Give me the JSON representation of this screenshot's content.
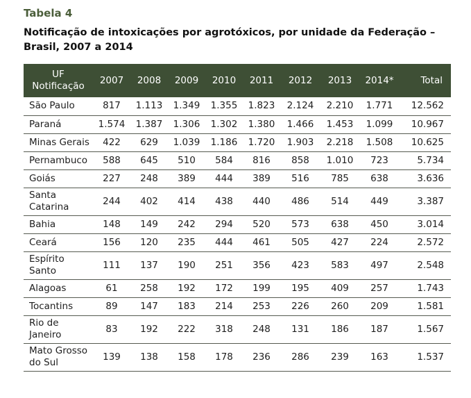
{
  "table_label": "Tabela 4",
  "title": "Notificação de intoxicações por agrotóxicos, por unidade da Federação – Brasil, 2007 a 2014",
  "header": {
    "uf_line1": "UF",
    "uf_line2": "Notificação",
    "years": [
      "2007",
      "2008",
      "2009",
      "2010",
      "2011",
      "2012",
      "2013",
      "2014*"
    ],
    "total": "Total"
  },
  "rows": [
    {
      "name": [
        "São Paulo"
      ],
      "values": [
        "817",
        "1.113",
        "1.349",
        "1.355",
        "1.823",
        "2.124",
        "2.210",
        "1.771"
      ],
      "total": "12.562"
    },
    {
      "name": [
        "Paraná"
      ],
      "values": [
        "1.574",
        "1.387",
        "1.306",
        "1.302",
        "1.380",
        "1.466",
        "1.453",
        "1.099"
      ],
      "total": "10.967"
    },
    {
      "name": [
        "Minas Gerais"
      ],
      "values": [
        "422",
        "629",
        "1.039",
        "1.186",
        "1.720",
        "1.903",
        "2.218",
        "1.508"
      ],
      "total": "10.625"
    },
    {
      "name": [
        "Pernambuco"
      ],
      "values": [
        "588",
        "645",
        "510",
        "584",
        "816",
        "858",
        "1.010",
        "723"
      ],
      "total": "5.734"
    },
    {
      "name": [
        "Goiás"
      ],
      "values": [
        "227",
        "248",
        "389",
        "444",
        "389",
        "516",
        "785",
        "638"
      ],
      "total": "3.636"
    },
    {
      "name": [
        "Santa",
        "Catarina"
      ],
      "values": [
        "244",
        "402",
        "414",
        "438",
        "440",
        "486",
        "514",
        "449"
      ],
      "total": "3.387"
    },
    {
      "name": [
        "Bahia"
      ],
      "values": [
        "148",
        "149",
        "242",
        "294",
        "520",
        "573",
        "638",
        "450"
      ],
      "total": "3.014"
    },
    {
      "name": [
        "Ceará"
      ],
      "values": [
        "156",
        "120",
        "235",
        "444",
        "461",
        "505",
        "427",
        "224"
      ],
      "total": "2.572"
    },
    {
      "name": [
        "Espírito",
        "Santo"
      ],
      "values": [
        "111",
        "137",
        "190",
        "251",
        "356",
        "423",
        "583",
        "497"
      ],
      "total": "2.548"
    },
    {
      "name": [
        "Alagoas"
      ],
      "values": [
        "61",
        "258",
        "192",
        "172",
        "199",
        "195",
        "409",
        "257"
      ],
      "total": "1.743"
    },
    {
      "name": [
        "Tocantins"
      ],
      "values": [
        "89",
        "147",
        "183",
        "214",
        "253",
        "226",
        "260",
        "209"
      ],
      "total": "1.581"
    },
    {
      "name": [
        "Rio de",
        "Janeiro"
      ],
      "values": [
        "83",
        "192",
        "222",
        "318",
        "248",
        "131",
        "186",
        "187"
      ],
      "total": "1.567"
    },
    {
      "name": [
        "Mato Grosso",
        "do Sul"
      ],
      "values": [
        "139",
        "138",
        "158",
        "178",
        "236",
        "286",
        "239",
        "163"
      ],
      "total": "1.537"
    }
  ]
}
